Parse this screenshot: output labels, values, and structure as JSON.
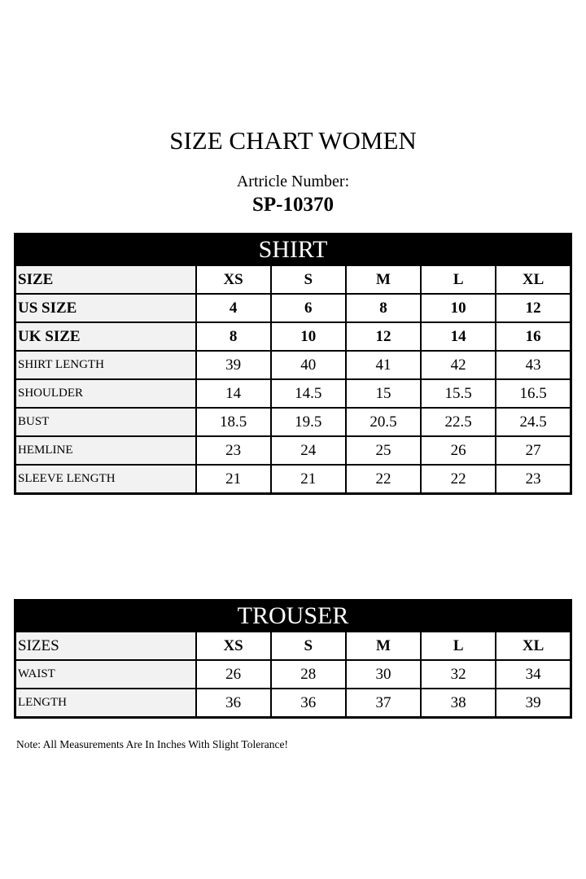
{
  "title": "SIZE CHART WOMEN",
  "article_label": "Artricle Number:",
  "article_number": "SP-10370",
  "shirt": {
    "heading": "SHIRT",
    "header_rows": [
      {
        "label": "SIZE",
        "values": [
          "XS",
          "S",
          "M",
          "L",
          "XL"
        ]
      },
      {
        "label": "US SIZE",
        "values": [
          "4",
          "6",
          "8",
          "10",
          "12"
        ]
      },
      {
        "label": "UK SIZE",
        "values": [
          "8",
          "10",
          "12",
          "14",
          "16"
        ]
      }
    ],
    "rows": [
      {
        "label": "SHIRT LENGTH",
        "values": [
          "39",
          "40",
          "41",
          "42",
          "43"
        ]
      },
      {
        "label": "SHOULDER",
        "values": [
          "14",
          "14.5",
          "15",
          "15.5",
          "16.5"
        ]
      },
      {
        "label": "BUST",
        "values": [
          "18.5",
          "19.5",
          "20.5",
          "22.5",
          "24.5"
        ]
      },
      {
        "label": "HEMLINE",
        "values": [
          "23",
          "24",
          "25",
          "26",
          "27"
        ]
      },
      {
        "label": "SLEEVE LENGTH",
        "values": [
          "21",
          "21",
          "22",
          "22",
          "23"
        ]
      }
    ]
  },
  "trouser": {
    "heading": "TROUSER",
    "header_row": {
      "label": "SIZES",
      "values": [
        "XS",
        "S",
        "M",
        "L",
        "XL"
      ]
    },
    "rows": [
      {
        "label": "WAIST",
        "values": [
          "26",
          "28",
          "30",
          "32",
          "34"
        ]
      },
      {
        "label": "LENGTH",
        "values": [
          "36",
          "36",
          "37",
          "38",
          "39"
        ]
      }
    ]
  },
  "note": "Note: All Measurements Are In Inches With Slight Tolerance!"
}
